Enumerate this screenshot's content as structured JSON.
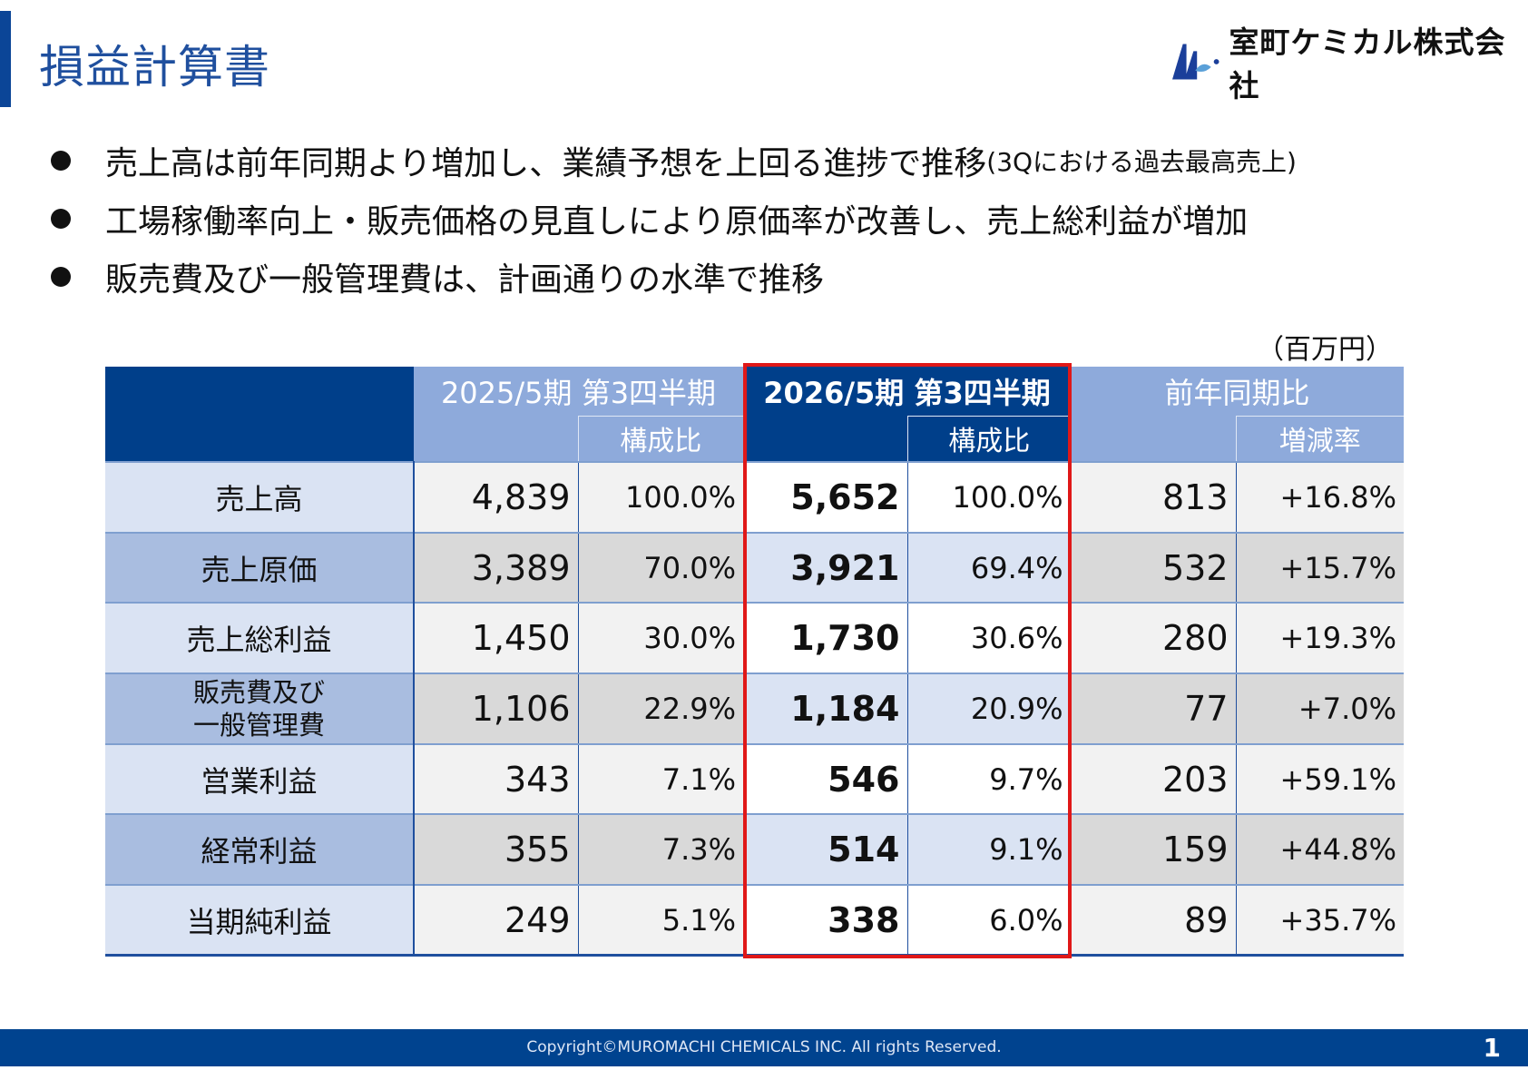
{
  "header": {
    "title": "損益計算書",
    "company": "室町ケミカル株式会社"
  },
  "bullets": [
    {
      "text": "売上高は前年同期より増加し、業績予想を上回る進捗で推移",
      "note": "(3Qにおける過去最高売上)"
    },
    {
      "text": "工場稼働率向上・販売価格の見直しにより原価率が改善し、売上総利益が増加",
      "note": ""
    },
    {
      "text": "販売費及び一般管理費は、計画通りの水準で推移",
      "note": ""
    }
  ],
  "unit": "（百万円）",
  "table": {
    "headers": {
      "prev": "2025/5期 第3四半期",
      "curr": "2026/5期 第3四半期",
      "yoy": "前年同期比",
      "ratio": "構成比",
      "ratio2": "構成比",
      "change": "増減率"
    },
    "rows": [
      {
        "label": "売上高",
        "prev": "4,839",
        "prev_pct": "100.0%",
        "curr": "5,652",
        "curr_pct": "100.0%",
        "diff": "813",
        "rate": "+16.8%"
      },
      {
        "label": "売上原価",
        "prev": "3,389",
        "prev_pct": "70.0%",
        "curr": "3,921",
        "curr_pct": "69.4%",
        "diff": "532",
        "rate": "+15.7%"
      },
      {
        "label": "売上総利益",
        "prev": "1,450",
        "prev_pct": "30.0%",
        "curr": "1,730",
        "curr_pct": "30.6%",
        "diff": "280",
        "rate": "+19.3%"
      },
      {
        "label": "販売費及び",
        "label2": "一般管理費",
        "prev": "1,106",
        "prev_pct": "22.9%",
        "curr": "1,184",
        "curr_pct": "20.9%",
        "diff": "77",
        "rate": "+7.0%"
      },
      {
        "label": "営業利益",
        "prev": "343",
        "prev_pct": "7.1%",
        "curr": "546",
        "curr_pct": "9.7%",
        "diff": "203",
        "rate": "+59.1%"
      },
      {
        "label": "経常利益",
        "prev": "355",
        "prev_pct": "7.3%",
        "curr": "514",
        "curr_pct": "9.1%",
        "diff": "159",
        "rate": "+44.8%"
      },
      {
        "label": "当期純利益",
        "prev": "249",
        "prev_pct": "5.1%",
        "curr": "338",
        "curr_pct": "6.0%",
        "diff": "89",
        "rate": "+35.7%"
      }
    ]
  },
  "footer": {
    "copyright": "Copyright©MUROMACHI CHEMICALS INC. All rights Reserved.",
    "page": "1"
  },
  "colors": {
    "navy": "#003f8a",
    "light_header": "#8eaadb",
    "highlight": "#e01818"
  }
}
